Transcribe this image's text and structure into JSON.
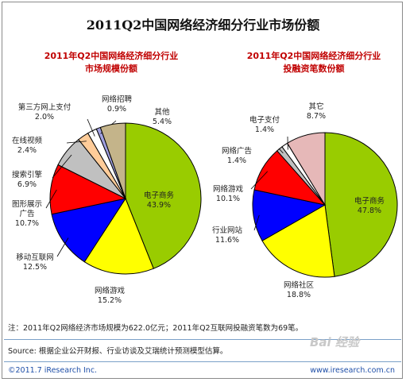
{
  "title": "2011Q2中国网络经济细分行业市场份额",
  "footer": {
    "note": "注：2011年Q2网络经济市场规模为622.0亿元；2011年Q2互联网投融资笔数为69笔。",
    "source": "Source: 根据企业公开财报、行业访谈及艾瑞统计预测模型估算。",
    "copyright": "©2011.7 iResearch Inc.",
    "website": "www.iresearch.com.cn",
    "watermark": "Bai 经验"
  },
  "chart_data": [
    {
      "type": "pie",
      "title_lines": [
        "2011年Q2中国网络经济细分行业",
        "市场规模份额"
      ],
      "slices": [
        {
          "label": "电子商务",
          "value": 43.9,
          "value_text": "43.9%",
          "color": "#99cc00"
        },
        {
          "label": "网络游戏",
          "value": 15.2,
          "value_text": "15.2%",
          "color": "#ffff00"
        },
        {
          "label": "移动互联网",
          "value": 12.5,
          "value_text": "12.5%",
          "color": "#0000ff"
        },
        {
          "label": "图形展示广告",
          "value": 10.7,
          "value_text": "10.7%",
          "color": "#ff0000"
        },
        {
          "label": "搜索引擎",
          "value": 6.9,
          "value_text": "6.9%",
          "color": "#c0c0c0"
        },
        {
          "label": "在线视频",
          "value": 2.4,
          "value_text": "2.4%",
          "color": "#ffcc99"
        },
        {
          "label": "第三方网上支付",
          "value": 2.0,
          "value_text": "2.0%",
          "color": "#ffffff"
        },
        {
          "label": "网络招聘",
          "value": 0.9,
          "value_text": "0.9%",
          "color": "#a0a0e0"
        },
        {
          "label": "其他",
          "value": 5.4,
          "value_text": "5.4%",
          "color": "#c4b48a"
        }
      ]
    },
    {
      "type": "pie",
      "title_lines": [
        "2011年Q2中国网络经济细分行业",
        "投融资笔数份额"
      ],
      "slices": [
        {
          "label": "电子商务",
          "value": 47.8,
          "value_text": "47.8%",
          "color": "#99cc00"
        },
        {
          "label": "网络社区",
          "value": 18.8,
          "value_text": "18.8%",
          "color": "#ffff00"
        },
        {
          "label": "行业网站",
          "value": 11.6,
          "value_text": "11.6%",
          "color": "#0000ff"
        },
        {
          "label": "网络游戏",
          "value": 10.1,
          "value_text": "10.1%",
          "color": "#ff0000"
        },
        {
          "label": "网络广告",
          "value": 1.4,
          "value_text": "1.4%",
          "color": "#c0c0c0"
        },
        {
          "label": "电子支付",
          "value": 1.4,
          "value_text": "1.4%",
          "color": "#ffffff"
        },
        {
          "label": "其它",
          "value": 8.7,
          "value_text": "8.7%",
          "color": "#e6b8b8"
        }
      ]
    }
  ]
}
